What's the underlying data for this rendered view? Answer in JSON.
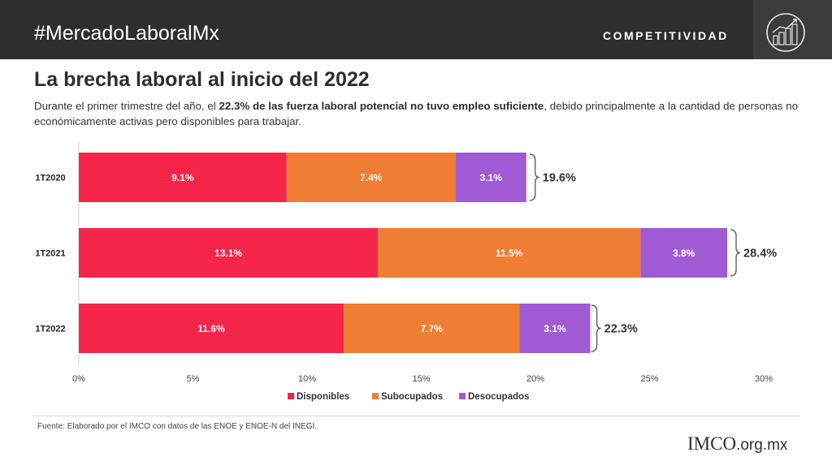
{
  "header": {
    "hashtag": "#MercadoLaboralMx",
    "section": "COMPETITIVIDAD"
  },
  "title": "La brecha laboral al inicio del 2022",
  "subtitle": {
    "part1": "Durante el primer trimestre del año, el ",
    "bold": "22.3% de las fuerza laboral potencial no tuvo empleo suficiente",
    "part2": ", debido principalmente a la cantidad de personas no económicamente  activas pero disponibles  para trabajar."
  },
  "chart_data": {
    "type": "bar",
    "orientation": "horizontal",
    "stacked": true,
    "categories": [
      "1T2020",
      "1T2021",
      "1T2022"
    ],
    "series": [
      {
        "name": "Disponibles",
        "values": [
          9.1,
          13.1,
          11.6
        ],
        "labels": [
          "9.1%",
          "13.1%",
          "11.6%"
        ],
        "color": "#f5254a"
      },
      {
        "name": "Subocupados",
        "values": [
          7.4,
          11.5,
          7.7
        ],
        "labels": [
          "7.4%",
          "11.5%",
          "7.7%"
        ],
        "color": "#ef7d33"
      },
      {
        "name": "Desocupados",
        "values": [
          3.1,
          3.8,
          3.1
        ],
        "labels": [
          "3.1%",
          "3.8%",
          "3.1%"
        ],
        "color": "#a05ad3"
      }
    ],
    "totals": [
      "19.6%",
      "28.4%",
      "22.3%"
    ],
    "total_values": [
      19.6,
      28.4,
      22.3
    ],
    "xlim": [
      0,
      30
    ],
    "xticks": [
      0,
      5,
      10,
      15,
      20,
      25,
      30
    ],
    "xtick_labels": [
      "0%",
      "5%",
      "10%",
      "15%",
      "20%",
      "25%",
      "30%"
    ],
    "legend_position": "bottom",
    "grid": false
  },
  "source": "Fuente: Elaborado por el IMCO con datos de las ENOE y ENOE-N del INEGI.",
  "footer": {
    "brand": "IMCO",
    "domain": ".org.mx"
  },
  "icons": {
    "header": "building-chart-icon"
  },
  "colors": {
    "header_bg": "#2e2e2e",
    "label_text": "#ffffff"
  }
}
